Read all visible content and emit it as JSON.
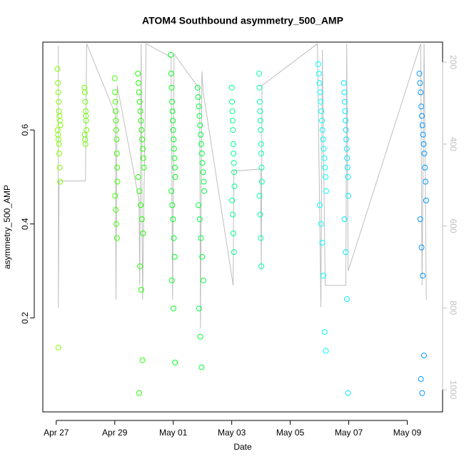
{
  "chart_data": {
    "type": "scatter",
    "title": "ATOM4 Southbound asymmetry_500_AMP",
    "x_label": "Date",
    "y_label": "asymmetry_500_AMP",
    "xlim": [
      "Apr 26 13:00",
      "May 10 05:00"
    ],
    "xticks": [
      "Apr 27",
      "Apr 29",
      "May 01",
      "May 03",
      "May 05",
      "May 07",
      "May 09"
    ],
    "ylim": [
      0,
      0.787
    ],
    "yticks": [
      0.2,
      0.4,
      0.6
    ],
    "y2lim": [
      1054,
      151
    ],
    "y2ticks": [
      200,
      400,
      600,
      800,
      1000
    ],
    "series": [
      {
        "axis": "y2",
        "line": true,
        "color": "#bebebe",
        "x": [
          "Apr 27 01:45",
          "Apr 27 01:45",
          "Apr 27 02:20",
          "Apr 28 00:00",
          "Apr 28 00:10",
          "Apr 28 01:00",
          "Apr 29 00:30",
          "Apr 29 01:00",
          "Apr 29 02:00",
          "Apr 29 19:55",
          "Apr 29 20:30",
          "Apr 29 21:40",
          "Apr 29 22:50",
          "Apr 30 01:45",
          "Apr 30 22:15",
          "Apr 30 23:30",
          "May 01 00:40",
          "May 01 21:40",
          "May 01 22:20",
          "May 01 23:30",
          "May 02 00:40",
          "May 03 01:10",
          "May 03 01:45",
          "May 03 23:35",
          "May 04 00:15",
          "May 04 00:50",
          "May 05 22:20",
          "May 06 01:10",
          "May 06 02:20",
          "May 06 04:40",
          "May 06 21:40",
          "May 06 22:20",
          "May 06 23:30",
          "May 09 11:00",
          "May 09 12:10",
          "May 09 13:50",
          "May 09 15:40"
        ],
        "values": [
          160,
          800,
          490,
          490,
          395,
          155,
          327,
          780,
          257,
          536,
          745,
          155,
          780,
          155,
          188,
          780,
          180,
          266,
          850,
          222,
          275,
          745,
          466,
          461,
          710,
          257,
          155,
          798,
          170,
          745,
          745,
          155,
          710,
          155,
          745,
          155,
          780
        ]
      },
      {
        "color": "#80ff00",
        "x": [
          "Apr 27 01:00",
          "Apr 27 01:20",
          "Apr 27 01:40",
          "Apr 27 02:00",
          "Apr 27 02:20",
          "Apr 27 02:40",
          "Apr 27 03:00",
          "Apr 27 03:20",
          "Apr 27 01:10",
          "Apr 27 01:30",
          "Apr 27 01:50",
          "Apr 27 02:10",
          "Apr 27 02:30",
          "Apr 27 02:50",
          "Apr 27 03:10",
          "Apr 27 01:45"
        ],
        "values": [
          0.73,
          0.7,
          0.68,
          0.66,
          0.64,
          0.63,
          0.62,
          0.61,
          0.6,
          0.59,
          0.58,
          0.57,
          0.55,
          0.52,
          0.49,
          0.137
        ]
      },
      {
        "color": "#6aff00",
        "x": [
          "Apr 27 23:10",
          "Apr 27 23:30",
          "Apr 27 23:50",
          "Apr 28 00:10",
          "Apr 28 00:30",
          "Apr 28 00:50",
          "Apr 27 23:20",
          "Apr 27 23:40",
          "Apr 28 00:00",
          "Apr 28 00:20"
        ],
        "values": [
          0.69,
          0.68,
          0.66,
          0.64,
          0.62,
          0.6,
          0.59,
          0.58,
          0.57,
          0.63
        ]
      },
      {
        "color": "#40ff00",
        "x": [
          "Apr 29 00:00",
          "Apr 29 00:15",
          "Apr 29 00:30",
          "Apr 29 00:45",
          "Apr 29 01:00",
          "Apr 29 01:15",
          "Apr 29 01:30",
          "Apr 29 01:45",
          "Apr 29 02:00",
          "Apr 29 02:15",
          "Apr 29 00:20",
          "Apr 29 00:50",
          "Apr 29 01:20",
          "Apr 29 01:50"
        ],
        "values": [
          0.71,
          0.68,
          0.66,
          0.64,
          0.62,
          0.6,
          0.58,
          0.55,
          0.52,
          0.49,
          0.46,
          0.43,
          0.4,
          0.37
        ]
      },
      {
        "color": "#20ff00",
        "x": [
          "Apr 29 19:00",
          "Apr 29 19:30",
          "Apr 29 20:00",
          "Apr 29 20:30",
          "Apr 29 21:00",
          "Apr 29 21:30",
          "Apr 29 22:00",
          "Apr 29 22:30",
          "Apr 29 23:00",
          "Apr 29 23:30",
          "Apr 30 00:00",
          "Apr 29 19:15",
          "Apr 29 20:15",
          "Apr 29 21:15",
          "Apr 29 22:15",
          "Apr 29 23:15",
          "Apr 29 20:45",
          "Apr 29 21:45",
          "Apr 29 22:45",
          "Apr 29 20:05"
        ],
        "values": [
          0.72,
          0.7,
          0.68,
          0.66,
          0.64,
          0.62,
          0.6,
          0.58,
          0.56,
          0.54,
          0.52,
          0.5,
          0.47,
          0.44,
          0.41,
          0.38,
          0.31,
          0.26,
          0.11,
          0.04
        ]
      },
      {
        "color": "#00ff20",
        "x": [
          "Apr 30 22:00",
          "Apr 30 22:20",
          "Apr 30 22:40",
          "Apr 30 23:00",
          "Apr 30 23:20",
          "Apr 30 23:40",
          "May 01 00:00",
          "May 01 00:20",
          "May 01 00:40",
          "May 01 01:00",
          "May 01 01:20",
          "May 01 01:40",
          "Apr 30 22:30",
          "Apr 30 23:10",
          "Apr 30 23:50",
          "May 01 00:30",
          "May 01 01:10",
          "Apr 30 22:50",
          "May 01 00:10",
          "May 01 01:30"
        ],
        "values": [
          0.76,
          0.72,
          0.69,
          0.66,
          0.64,
          0.62,
          0.6,
          0.58,
          0.56,
          0.54,
          0.52,
          0.5,
          0.47,
          0.44,
          0.41,
          0.37,
          0.33,
          0.28,
          0.22,
          0.105
        ]
      },
      {
        "color": "#00ff40",
        "x": [
          "May 01 20:00",
          "May 01 20:30",
          "May 01 21:00",
          "May 01 21:30",
          "May 01 22:00",
          "May 01 22:30",
          "May 01 23:00",
          "May 01 23:30",
          "May 02 00:00",
          "May 02 00:30",
          "May 02 01:00",
          "May 02 01:30",
          "May 01 20:45",
          "May 01 21:45",
          "May 01 22:45",
          "May 01 23:45",
          "May 02 00:45",
          "May 01 21:15",
          "May 01 22:15",
          "May 01 23:15"
        ],
        "values": [
          0.69,
          0.67,
          0.65,
          0.63,
          0.61,
          0.59,
          0.57,
          0.55,
          0.53,
          0.51,
          0.49,
          0.47,
          0.44,
          0.41,
          0.37,
          0.33,
          0.28,
          0.22,
          0.16,
          0.095
        ]
      },
      {
        "color": "#00ff90",
        "x": [
          "May 03 00:00",
          "May 03 00:15",
          "May 03 00:30",
          "May 03 00:45",
          "May 03 01:00",
          "May 03 01:15",
          "May 03 01:30",
          "May 03 01:45",
          "May 03 02:00",
          "May 03 02:15",
          "May 03 00:20",
          "May 03 00:50",
          "May 03 01:20",
          "May 03 01:50"
        ],
        "values": [
          0.69,
          0.66,
          0.64,
          0.62,
          0.6,
          0.57,
          0.55,
          0.53,
          0.51,
          0.48,
          0.45,
          0.42,
          0.38,
          0.34
        ]
      },
      {
        "color": "#00ffb0",
        "x": [
          "May 03 22:30",
          "May 03 22:45",
          "May 03 23:00",
          "May 03 23:15",
          "May 03 23:30",
          "May 03 23:45",
          "May 04 00:00",
          "May 04 00:15",
          "May 04 00:30",
          "May 04 00:45",
          "May 03 22:50",
          "May 03 23:20",
          "May 03 23:50",
          "May 04 00:20"
        ],
        "values": [
          0.72,
          0.69,
          0.66,
          0.64,
          0.62,
          0.6,
          0.57,
          0.55,
          0.52,
          0.49,
          0.46,
          0.42,
          0.37,
          0.31
        ]
      },
      {
        "color": "#00ffff",
        "x": [
          "May 05 23:00",
          "May 05 23:30",
          "May 06 00:00",
          "May 06 00:30",
          "May 06 01:00",
          "May 06 01:30",
          "May 06 02:00",
          "May 06 02:30",
          "May 06 03:00",
          "May 06 03:30",
          "May 06 04:00",
          "May 06 04:30",
          "May 06 05:00",
          "May 06 05:30",
          "May 06 00:15",
          "May 06 01:15",
          "May 06 02:15",
          "May 06 03:15",
          "May 06 04:15",
          "May 06 05:15"
        ],
        "values": [
          0.74,
          0.72,
          0.7,
          0.68,
          0.66,
          0.64,
          0.62,
          0.6,
          0.58,
          0.56,
          0.54,
          0.52,
          0.5,
          0.47,
          0.44,
          0.4,
          0.36,
          0.29,
          0.17,
          0.13
        ]
      },
      {
        "color": "#00e8ff",
        "x": [
          "May 06 20:00",
          "May 06 20:20",
          "May 06 20:40",
          "May 06 21:00",
          "May 06 21:20",
          "May 06 21:40",
          "May 06 22:00",
          "May 06 22:20",
          "May 06 22:40",
          "May 06 23:00",
          "May 06 23:20",
          "May 06 23:40",
          "May 06 20:30",
          "May 06 21:30",
          "May 06 22:30",
          "May 06 23:30"
        ],
        "values": [
          0.7,
          0.68,
          0.66,
          0.64,
          0.62,
          0.6,
          0.58,
          0.56,
          0.54,
          0.52,
          0.5,
          0.46,
          0.41,
          0.34,
          0.24,
          0.04
        ]
      },
      {
        "color": "#0099ff",
        "x": [
          "May 09 10:00",
          "May 09 10:30",
          "May 09 11:00",
          "May 09 11:30",
          "May 09 12:00",
          "May 09 12:30",
          "May 09 13:00",
          "May 09 13:30",
          "May 09 14:00",
          "May 09 14:30",
          "May 09 15:00",
          "May 09 15:30",
          "May 09 10:45",
          "May 09 11:45",
          "May 09 12:45",
          "May 09 13:45",
          "May 09 11:15",
          "May 09 12:15"
        ],
        "values": [
          0.72,
          0.7,
          0.68,
          0.65,
          0.63,
          0.61,
          0.59,
          0.57,
          0.55,
          0.52,
          0.49,
          0.45,
          0.41,
          0.35,
          0.29,
          0.12,
          0.07,
          0.04
        ]
      }
    ]
  }
}
